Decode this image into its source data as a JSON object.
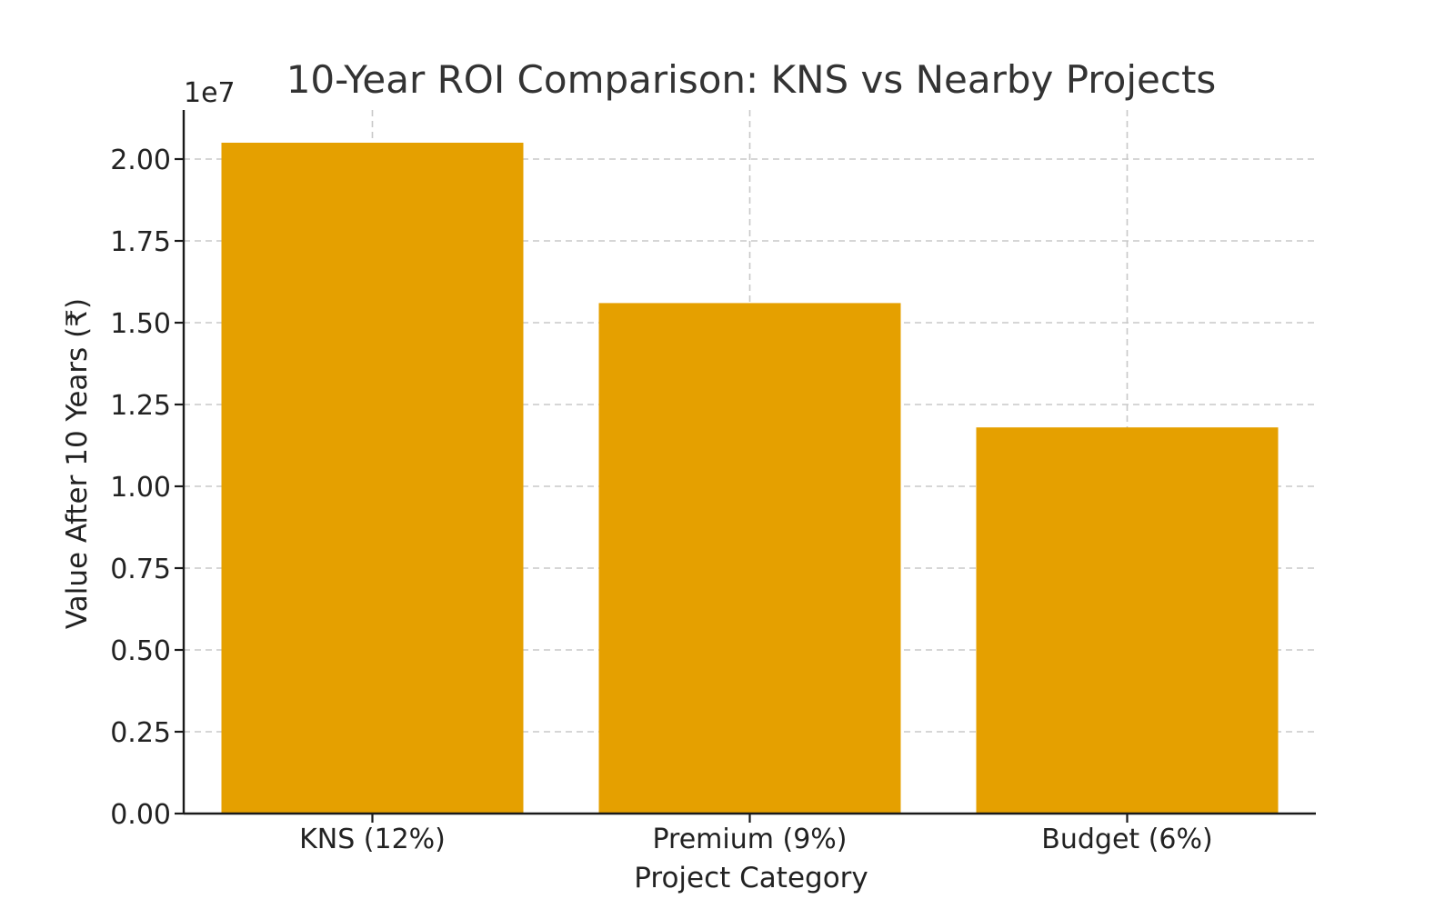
{
  "chart_data": {
    "type": "bar",
    "title": "10-Year ROI Comparison: KNS vs Nearby Projects",
    "xlabel": "Project Category",
    "ylabel": "Value After 10 Years (₹)",
    "y_offset_label": "1e7",
    "scale": 10000000,
    "categories": [
      "KNS (12%)",
      "Premium (9%)",
      "Budget (6%)"
    ],
    "values": [
      20500000,
      15600000,
      11800000
    ],
    "ylim": [
      0,
      21500000
    ],
    "yticks": [
      0,
      0.25,
      0.5,
      0.75,
      1.0,
      1.25,
      1.5,
      1.75,
      2.0
    ],
    "ytick_labels": [
      "0.00",
      "0.25",
      "0.50",
      "0.75",
      "1.00",
      "1.25",
      "1.50",
      "1.75",
      "2.00"
    ],
    "bar_color": "#E5A000",
    "grid": true
  }
}
